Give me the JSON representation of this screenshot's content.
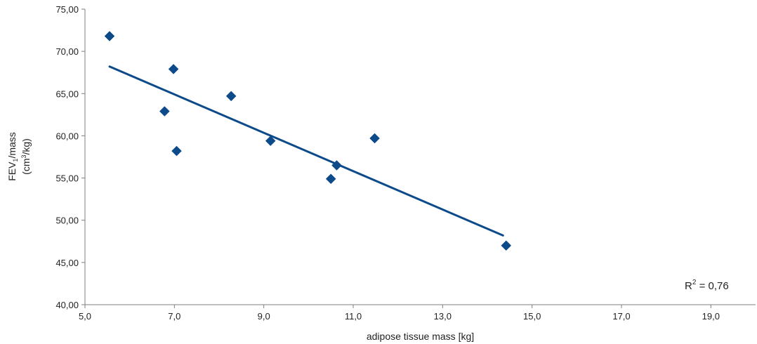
{
  "chart_data": {
    "type": "scatter",
    "title": "",
    "xlabel": "adipose tissue mass [kg]",
    "ylabel": {
      "line1_base": "FEV",
      "line1_sub": "1",
      "line1_rest": "/mass",
      "line2_pre": "(cm",
      "line2_sup": "3",
      "line2_post": "/kg)"
    },
    "xlim": [
      5.0,
      20.0
    ],
    "ylim": [
      40.0,
      75.0
    ],
    "x_ticks": [
      5.0,
      7.0,
      9.0,
      11.0,
      13.0,
      15.0,
      17.0,
      19.0
    ],
    "x_tick_labels": [
      "5,0",
      "7,0",
      "9,0",
      "11,0",
      "13,0",
      "15,0",
      "17,0",
      "19,0"
    ],
    "y_ticks": [
      40.0,
      45.0,
      50.0,
      55.0,
      60.0,
      65.0,
      70.0,
      75.0
    ],
    "y_tick_labels": [
      "40,00",
      "45,00",
      "50,00",
      "55,00",
      "60,00",
      "65,00",
      "70,00",
      "75,00"
    ],
    "grid": false,
    "marker": "diamond",
    "series_color": "#0d4a8a",
    "points": [
      {
        "x": 5.55,
        "y": 71.8
      },
      {
        "x": 6.98,
        "y": 67.9
      },
      {
        "x": 6.78,
        "y": 62.9
      },
      {
        "x": 8.27,
        "y": 64.7
      },
      {
        "x": 7.05,
        "y": 58.2
      },
      {
        "x": 9.15,
        "y": 59.4
      },
      {
        "x": 10.63,
        "y": 56.5
      },
      {
        "x": 10.5,
        "y": 54.9
      },
      {
        "x": 11.48,
        "y": 59.7
      },
      {
        "x": 14.42,
        "y": 47.0
      }
    ],
    "trendline": {
      "x": [
        5.55,
        14.35
      ],
      "y": [
        68.2,
        48.2
      ]
    },
    "annotation": {
      "r2_base": "R",
      "r2_sup": "2",
      "r2_value": " = 0,76"
    }
  }
}
